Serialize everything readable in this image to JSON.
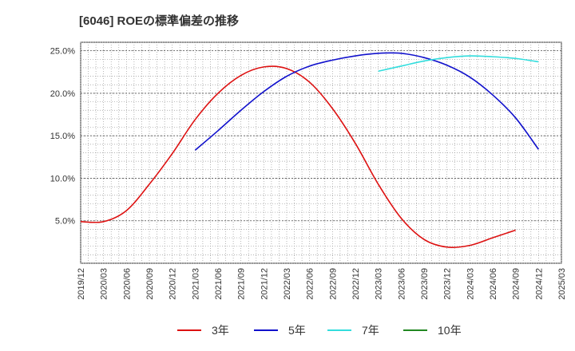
{
  "chart_data": {
    "type": "line",
    "title": "[6046]  ROEの標準偏差の推移",
    "xlabel": "",
    "ylabel": "",
    "ylim": [
      0.0,
      26.0
    ],
    "yticks": [
      5.0,
      10.0,
      15.0,
      20.0,
      25.0
    ],
    "ytick_labels": [
      "5.0%",
      "10.0%",
      "15.0%",
      "20.0%",
      "25.0%"
    ],
    "x_labels": [
      "2019/12",
      "2020/03",
      "2020/06",
      "2020/09",
      "2020/12",
      "2021/03",
      "2021/06",
      "2021/09",
      "2021/12",
      "2022/03",
      "2022/06",
      "2022/09",
      "2022/12",
      "2023/03",
      "2023/06",
      "2023/09",
      "2023/12",
      "2024/03",
      "2024/06",
      "2024/09",
      "2024/12",
      "2025/03"
    ],
    "grid": true,
    "legend_position": "bottom",
    "series": [
      {
        "name": "3年",
        "color": "#dd1111",
        "start_index": 0,
        "values": [
          4.9,
          4.9,
          6.2,
          9.3,
          12.9,
          16.9,
          20.0,
          22.1,
          23.1,
          22.9,
          21.3,
          18.2,
          14.1,
          9.3,
          5.3,
          2.8,
          1.9,
          2.1,
          3.0,
          3.9
        ]
      },
      {
        "name": "5年",
        "color": "#1111cc",
        "start_index": 5,
        "values": [
          13.3,
          15.6,
          18.0,
          20.2,
          22.0,
          23.2,
          23.9,
          24.4,
          24.7,
          24.7,
          24.2,
          23.3,
          21.9,
          19.8,
          17.1,
          13.4
        ]
      },
      {
        "name": "7年",
        "color": "#33dddd",
        "start_index": 13,
        "values": [
          22.6,
          23.2,
          23.8,
          24.2,
          24.4,
          24.3,
          24.1,
          23.7
        ]
      },
      {
        "name": "10年",
        "color": "#228822",
        "start_index": 0,
        "values": []
      }
    ]
  }
}
